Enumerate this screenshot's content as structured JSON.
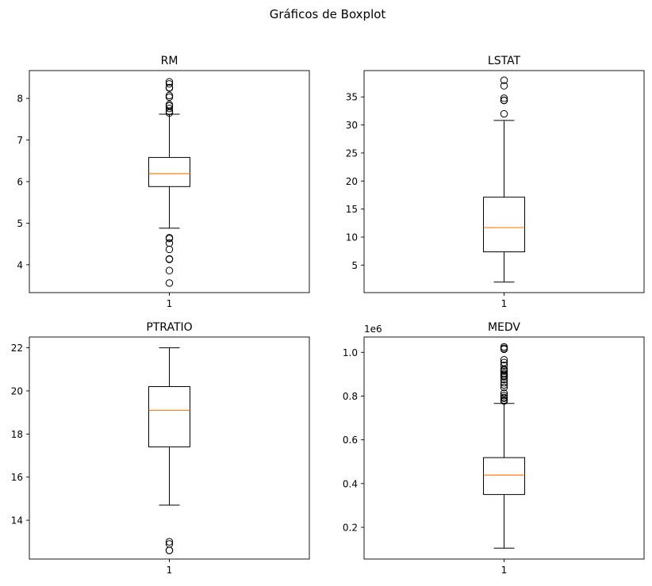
{
  "figure_title": "Gráficos de Boxplot",
  "chart_data": [
    {
      "type": "boxplot",
      "title": "RM",
      "categories": [
        "1"
      ],
      "ylim": [
        3.33,
        8.67
      ],
      "yticks": [
        4,
        5,
        6,
        7,
        8
      ],
      "ytick_labels": [
        "4",
        "5",
        "6",
        "7",
        "8"
      ],
      "offset_text": "",
      "stats": {
        "whisker_low": 4.88,
        "q1": 5.88,
        "median": 6.19,
        "q3": 6.58,
        "whisker_high": 7.62
      },
      "outliers": [
        8.4,
        8.35,
        8.26,
        8.25,
        8.07,
        8.03,
        7.85,
        7.82,
        7.76,
        7.69,
        7.65,
        4.65,
        4.63,
        4.52,
        4.37,
        4.14,
        4.13,
        3.86,
        3.56
      ],
      "colors": {
        "box": "#000000",
        "median": "#ff7f0e"
      }
    },
    {
      "type": "boxplot",
      "title": "LSTAT",
      "categories": [
        "1"
      ],
      "ylim": [
        0.1,
        39.7
      ],
      "yticks": [
        5,
        10,
        15,
        20,
        25,
        30,
        35
      ],
      "ytick_labels": [
        "5",
        "10",
        "15",
        "20",
        "25",
        "30",
        "35"
      ],
      "offset_text": "",
      "stats": {
        "whisker_low": 1.98,
        "q1": 7.37,
        "median": 11.69,
        "q3": 17.12,
        "whisker_high": 30.81
      },
      "outliers": [
        37.97,
        36.98,
        34.77,
        34.41,
        34.37,
        31.99
      ],
      "colors": {
        "box": "#000000",
        "median": "#ff7f0e"
      }
    },
    {
      "type": "boxplot",
      "title": "PTRATIO",
      "categories": [
        "1"
      ],
      "ylim": [
        12.2,
        22.5
      ],
      "yticks": [
        14,
        16,
        18,
        20,
        22
      ],
      "ytick_labels": [
        "14",
        "16",
        "18",
        "20",
        "22"
      ],
      "offset_text": "",
      "stats": {
        "whisker_low": 14.7,
        "q1": 17.4,
        "median": 19.1,
        "q3": 20.2,
        "whisker_high": 22.0
      },
      "outliers": [
        13.0,
        12.9,
        12.6,
        12.6
      ],
      "colors": {
        "box": "#000000",
        "median": "#ff7f0e"
      }
    },
    {
      "type": "boxplot",
      "title": "MEDV",
      "categories": [
        "1"
      ],
      "ylim": [
        55000,
        1070000
      ],
      "yticks": [
        200000,
        400000,
        600000,
        800000,
        1000000
      ],
      "ytick_labels": [
        "0.2",
        "0.4",
        "0.6",
        "0.8",
        "1.0"
      ],
      "offset_text": "1e6",
      "stats": {
        "whisker_low": 105000,
        "q1": 350000,
        "median": 438900,
        "q3": 518700,
        "whisker_high": 766500
      },
      "outliers": [
        1024800,
        1018500,
        1014300,
        966000,
        953400,
        940800,
        924000,
        919800,
        913500,
        905100,
        898800,
        892500,
        888300,
        875700,
        861000,
        850500,
        840000,
        812700,
        802200,
        793800,
        789600,
        781200,
        777000
      ],
      "colors": {
        "box": "#000000",
        "median": "#ff7f0e"
      }
    }
  ]
}
